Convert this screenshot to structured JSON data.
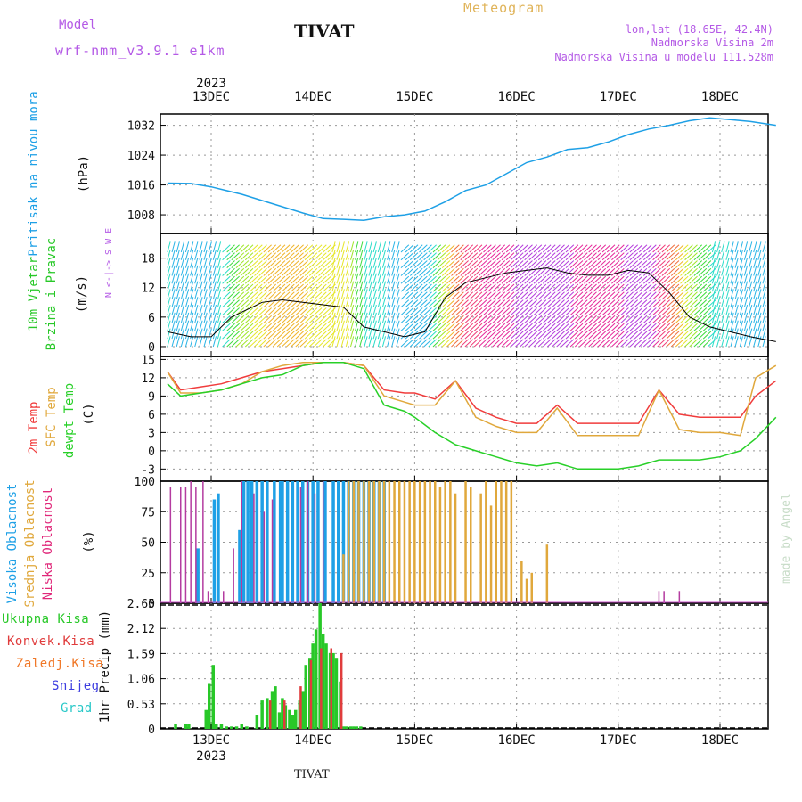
{
  "header": {
    "model_label": "Model",
    "model_name": "wrf-nmm_v3.9.1 e1km",
    "station": "TIVAT",
    "meteogram": "Meteogram",
    "coords": "lon,lat (18.65E, 42.4N)",
    "elevation": "Nadmorska Visina 2m",
    "model_elevation": "Nadmorska Visina u modelu 111.528m",
    "footer_station": "TIVAT",
    "watermark": "made by Angel"
  },
  "colors": {
    "pressure": "#1ea0e6",
    "t2m": "#f03c3c",
    "sfc": "#e0a83c",
    "dew": "#28d028",
    "high_cloud": "#1ea0e6",
    "mid_cloud": "#e0a83c",
    "low_cloud": "#b43ca0",
    "total_precip": "#28c828",
    "conv_precip": "#e03c3c",
    "frozen": "#f07828",
    "snow": "#3c3ce0",
    "graupel": "#28c8c8",
    "wind_label": "#28c828",
    "cloud_label_high": "#1ea0e6",
    "cloud_label_mid": "#e0a83c",
    "cloud_label_low": "#e0287a",
    "header_purple": "#b45ae6",
    "header_orange": "#e0b45a"
  },
  "time_axis": {
    "year": "2023",
    "days": [
      "13DEC",
      "14DEC",
      "15DEC",
      "16DEC",
      "17DEC",
      "18DEC"
    ]
  },
  "chart_data": [
    {
      "type": "line",
      "title": "Pritisak na nivou mora",
      "ylabel": "(hPa)",
      "ylim": [
        1003,
        1035
      ],
      "yticks": [
        "1008",
        "1016",
        "1024",
        "1032"
      ],
      "x_units": "days from 13DEC 00",
      "x": [
        -0.43,
        -0.2,
        0.0,
        0.3,
        0.6,
        0.9,
        1.1,
        1.3,
        1.5,
        1.7,
        1.9,
        2.1,
        2.3,
        2.5,
        2.7,
        2.9,
        3.1,
        3.3,
        3.5,
        3.7,
        3.9,
        4.1,
        4.3,
        4.5,
        4.7,
        4.9,
        5.1,
        5.3,
        5.55
      ],
      "series": [
        {
          "values": [
            1016.5,
            1016.4,
            1015.5,
            1013.5,
            1011,
            1008.5,
            1007,
            1006.8,
            1006.5,
            1007.5,
            1008,
            1009,
            1011.5,
            1014.5,
            1016,
            1019,
            1022,
            1023.5,
            1025.5,
            1026,
            1027.5,
            1029.5,
            1031,
            1032,
            1033.2,
            1034,
            1033.5,
            1033,
            1032
          ]
        }
      ]
    },
    {
      "type": "line",
      "title": "10m Vjetar Brzina i Pravac",
      "ylabel": "(m/s)",
      "ylim": [
        -2,
        23
      ],
      "yticks": [
        "0",
        "6",
        "12",
        "18"
      ],
      "compass": "N <-|-> S  W  E",
      "x": [
        -0.43,
        -0.2,
        0.0,
        0.2,
        0.4,
        0.5,
        0.7,
        0.9,
        1.1,
        1.3,
        1.5,
        1.7,
        1.9,
        2.1,
        2.3,
        2.5,
        2.7,
        2.9,
        3.1,
        3.3,
        3.5,
        3.7,
        3.9,
        4.1,
        4.3,
        4.5,
        4.7,
        4.9,
        5.1,
        5.3,
        5.55
      ],
      "series": [
        {
          "values": [
            3,
            2,
            2,
            6,
            8,
            9,
            9.5,
            9,
            8.5,
            8,
            4,
            3,
            2,
            3,
            10,
            13,
            14,
            15,
            15.5,
            16,
            15,
            14.5,
            14.5,
            15.5,
            15,
            11,
            6,
            4,
            3,
            2,
            1
          ]
        }
      ]
    },
    {
      "type": "line",
      "title": "2m Temp / SFC Temp / dewpt Temp",
      "ylabel": "(C)",
      "ylim": [
        -5,
        15.5
      ],
      "yticks": [
        "-3",
        "0",
        "3",
        "6",
        "9",
        "12",
        "15"
      ],
      "x": [
        -0.43,
        -0.3,
        -0.1,
        0.1,
        0.3,
        0.5,
        0.7,
        0.9,
        1.1,
        1.3,
        1.5,
        1.7,
        1.9,
        2.0,
        2.2,
        2.4,
        2.6,
        2.8,
        3.0,
        3.2,
        3.4,
        3.6,
        3.8,
        4.0,
        4.2,
        4.4,
        4.6,
        4.8,
        5.0,
        5.2,
        5.35,
        5.55
      ],
      "series": [
        {
          "name": "2m Temp",
          "values": [
            13,
            10,
            10.5,
            11,
            12,
            13,
            13.5,
            14,
            14.5,
            14.5,
            14,
            10,
            9.5,
            9.5,
            8.5,
            11.5,
            7,
            5.5,
            4.5,
            4.5,
            7.5,
            4.5,
            4.5,
            4.5,
            4.5,
            10,
            6,
            5.5,
            5.5,
            5.5,
            9,
            11.5
          ]
        },
        {
          "name": "SFC Temp",
          "values": [
            13,
            9.5,
            9.5,
            10,
            11,
            13,
            14,
            14.5,
            14.5,
            14.5,
            14,
            9,
            8,
            7.5,
            7.5,
            11.5,
            5.5,
            4,
            3,
            3,
            7,
            2.5,
            2.5,
            2.5,
            2.5,
            10,
            3.5,
            3,
            3,
            2.5,
            12,
            14
          ]
        },
        {
          "name": "dewpt Temp",
          "values": [
            11,
            9,
            9.5,
            10,
            11,
            12,
            12.5,
            14,
            14.5,
            14.5,
            13.5,
            7.5,
            6.5,
            5.5,
            3,
            1,
            0,
            -1,
            -2,
            -2.5,
            -2,
            -3,
            -3,
            -3,
            -2.5,
            -1.5,
            -1.5,
            -1.5,
            -1,
            0,
            2,
            5.5
          ]
        }
      ]
    },
    {
      "type": "bar",
      "title": "Visoka Oblacnost / Srednja Oblacnost / Niska Oblacnost",
      "ylabel": "(%)",
      "ylim": [
        0,
        100
      ],
      "yticks": [
        "0",
        "25",
        "50",
        "75",
        "100"
      ],
      "series": [
        {
          "name": "Visoka Oblacnost",
          "x": [
            -0.13,
            0.03,
            0.07,
            0.28,
            0.32,
            0.36,
            0.4,
            0.45,
            0.5,
            0.55,
            0.62,
            0.68,
            0.7,
            0.75,
            0.8,
            0.85,
            0.9,
            0.95,
            1.0,
            1.05,
            1.12,
            1.2,
            1.25,
            1.3,
            1.35,
            1.4,
            1.45,
            1.5,
            1.55,
            1.6,
            1.65,
            1.7
          ],
          "values": [
            45,
            85,
            90,
            60,
            100,
            100,
            100,
            100,
            100,
            100,
            100,
            100,
            100,
            100,
            100,
            100,
            100,
            100,
            100,
            100,
            100,
            100,
            100,
            100,
            100,
            100,
            100,
            100,
            100,
            100,
            100,
            100
          ]
        },
        {
          "name": "Srednja Oblacnost",
          "x": [
            1.3,
            1.35,
            1.4,
            1.45,
            1.5,
            1.55,
            1.6,
            1.65,
            1.7,
            1.75,
            1.8,
            1.85,
            1.9,
            1.95,
            2.0,
            2.05,
            2.1,
            2.15,
            2.2,
            2.25,
            2.3,
            2.35,
            2.4,
            2.5,
            2.55,
            2.65,
            2.7,
            2.75,
            2.8,
            2.85,
            2.9,
            2.95,
            3.05,
            3.1,
            3.15,
            3.3
          ],
          "values": [
            40,
            100,
            100,
            100,
            100,
            100,
            100,
            100,
            100,
            100,
            100,
            100,
            100,
            100,
            100,
            100,
            100,
            100,
            100,
            95,
            100,
            100,
            90,
            100,
            95,
            90,
            100,
            80,
            100,
            100,
            100,
            100,
            35,
            20,
            25,
            48
          ]
        },
        {
          "name": "Niska Oblacnost",
          "x": [
            -0.4,
            -0.3,
            -0.25,
            -0.2,
            -0.15,
            -0.08,
            -0.03,
            0.12,
            0.22,
            0.3,
            0.42,
            0.52,
            0.6,
            0.88,
            0.95,
            1.02,
            1.1,
            4.4,
            4.45,
            4.6
          ],
          "values": [
            95,
            95,
            95,
            100,
            95,
            100,
            10,
            10,
            45,
            100,
            90,
            75,
            85,
            95,
            100,
            90,
            100,
            10,
            10,
            10
          ]
        }
      ]
    },
    {
      "type": "bar",
      "title": "1hr Precip",
      "ylabel": "1hr Precip (mm)",
      "ylim": [
        0,
        2.65
      ],
      "yticks": [
        "0",
        "0.53",
        "1.06",
        "1.59",
        "2.12",
        "2.65"
      ],
      "legend": [
        "Ukupna Kisa",
        "Konvek.Kisa",
        "Zaledj.Kisa",
        "Snijeg",
        "Grad"
      ],
      "series": [
        {
          "name": "Ukupna Kisa",
          "x": [
            -0.35,
            -0.25,
            -0.22,
            -0.05,
            -0.02,
            0.02,
            0.05,
            0.1,
            0.15,
            0.2,
            0.25,
            0.3,
            0.35,
            0.45,
            0.5,
            0.55,
            0.6,
            0.63,
            0.67,
            0.7,
            0.73,
            0.77,
            0.8,
            0.83,
            0.87,
            0.9,
            0.93,
            0.97,
            1.0,
            1.03,
            1.07,
            1.1,
            1.13,
            1.17,
            1.2,
            1.23,
            1.27,
            1.3,
            1.33,
            1.37,
            1.4,
            1.43,
            1.47
          ],
          "values": [
            0.1,
            0.1,
            0.1,
            0.4,
            0.95,
            1.35,
            0.1,
            0.1,
            0.05,
            0.05,
            0.05,
            0.1,
            0.05,
            0.3,
            0.6,
            0.65,
            0.8,
            0.9,
            0.35,
            0.65,
            0.5,
            0.4,
            0.3,
            0.4,
            0.6,
            0.8,
            1.35,
            1.5,
            1.8,
            2.1,
            2.65,
            2.0,
            1.8,
            1.6,
            1.6,
            1.5,
            1.0,
            0.05,
            0.05,
            0.05,
            0.05,
            0.05,
            0.05
          ]
        },
        {
          "name": "Konvek.Kisa",
          "x": [
            0.58,
            0.72,
            0.88,
            0.98,
            1.08,
            1.18,
            1.28
          ],
          "values": [
            0.6,
            0.6,
            0.9,
            1.45,
            1.7,
            1.7,
            1.6
          ]
        }
      ]
    }
  ]
}
